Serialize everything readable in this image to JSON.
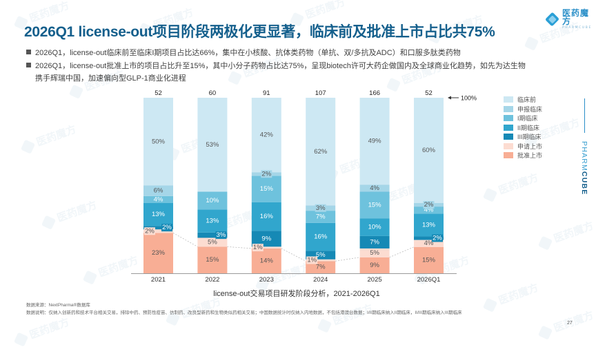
{
  "header": {
    "title": "2026Q1 license-out项目阶段两极化更显著，临床前及批准上市占比共75%",
    "logo_cn": "医药魔方",
    "logo_en": "PHARMCUBE"
  },
  "bullets": [
    {
      "text": "2026Q1，license-out临床前至临床I期项目占比达66%，集中在小核酸、抗体类药物（单抗、双/多抗及ADC）和口服多肽类药物"
    },
    {
      "text": "2026Q1，license-out批准上市的项目占比升至15%，其中小分子药物占比达75%，呈现biotech许可大药企做国内及全球商业化趋势，如先为达生物",
      "continuation": "携手辉瑞中国，加速偏向型GLP-1商业化进程"
    }
  ],
  "chart_data": {
    "type": "bar",
    "stacked": true,
    "normalized": true,
    "title": "license-out交易项目研发阶段分析，2021-2026Q1",
    "xlabel": "",
    "ylabel": "",
    "ylim": [
      0,
      100
    ],
    "top_marker": "100%",
    "categories": [
      "2021",
      "2022",
      "2023",
      "2024",
      "2025",
      "2026Q1"
    ],
    "totals": [
      52,
      60,
      91,
      107,
      166,
      52
    ],
    "series": [
      {
        "name": "批准上市",
        "color": "#f8ae95",
        "values": [
          23,
          15,
          14,
          7,
          9,
          15
        ]
      },
      {
        "name": "申请上市",
        "color": "#fcdcd1",
        "values": [
          2,
          5,
          1,
          1,
          5,
          4
        ]
      },
      {
        "name": "III期临床",
        "color": "#1689b5",
        "values": [
          2,
          3,
          9,
          5,
          7,
          2
        ]
      },
      {
        "name": "II期临床",
        "color": "#31a6cd",
        "values": [
          13,
          13,
          16,
          16,
          10,
          13
        ]
      },
      {
        "name": "I期临床",
        "color": "#6ec2dd",
        "values": [
          4,
          10,
          15,
          7,
          15,
          4
        ]
      },
      {
        "name": "申报临床",
        "color": "#a5d6e8",
        "values": [
          6,
          0,
          2,
          3,
          4,
          2
        ]
      },
      {
        "name": "临床前",
        "color": "#cde8f3",
        "values": [
          50,
          53,
          42,
          62,
          49,
          60
        ]
      }
    ],
    "legend": [
      "临床前",
      "申报临床",
      "I期临床",
      "II期临床",
      "III期临床",
      "申请上市",
      "批准上市"
    ],
    "legend_position": "right",
    "grid": false,
    "connector_series": "批准上市"
  },
  "footer": {
    "source": "数据来源：NextPharma®数据库",
    "note": "数据说明：仅纳入创新药和技术平台相关交易，排除中药、预防性疫苗、仿制药、改良型新药和生物类似药相关交易；中国数据统计时仅纳入内地数据，不包括港澳台数据；I/II期临床纳入II期临床，II/III期临床纳入III期临床",
    "page_number": "27",
    "brand_part1": "PHARM",
    "brand_part2": "CUBE"
  },
  "watermark_text": "医药魔方"
}
